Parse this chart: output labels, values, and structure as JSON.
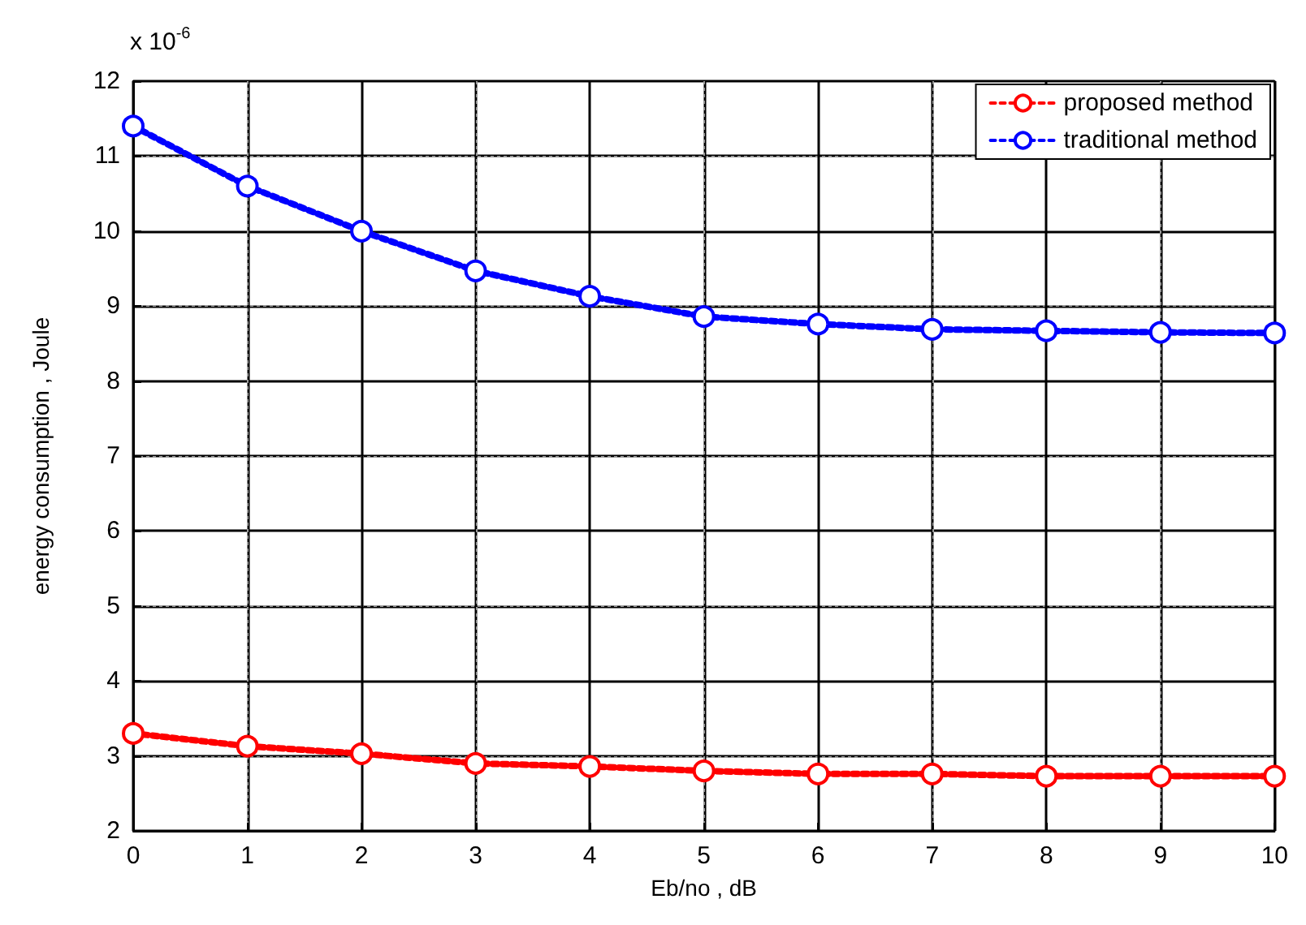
{
  "chart_data": {
    "type": "line",
    "xlabel": "Eb/no , dB",
    "ylabel": "energy consumption , Joule",
    "annotations": [
      "x 10$^{-6}$"
    ],
    "x": [
      0,
      1,
      2,
      3,
      4,
      5,
      6,
      7,
      8,
      9,
      10
    ],
    "series": [
      {
        "name": "proposed method",
        "color": "#ff0000",
        "values": [
          3.3,
          3.13,
          3.03,
          2.9,
          2.86,
          2.8,
          2.76,
          2.76,
          2.73,
          2.73,
          2.73
        ]
      },
      {
        "name": "traditional method",
        "color": "#0000ff",
        "values": [
          11.4,
          10.6,
          10.0,
          9.47,
          9.13,
          8.86,
          8.76,
          8.69,
          8.67,
          8.65,
          8.64
        ]
      }
    ],
    "xlim": [
      0,
      10
    ],
    "xticks": [
      0,
      1,
      2,
      3,
      4,
      5,
      6,
      7,
      8,
      9,
      10
    ],
    "ylim": [
      2,
      12
    ],
    "yticks": [
      2,
      3,
      4,
      5,
      6,
      7,
      8,
      9,
      10,
      11,
      12
    ],
    "grid": true,
    "legend": "top right",
    "marker": "circle",
    "line_style": "dotted"
  }
}
